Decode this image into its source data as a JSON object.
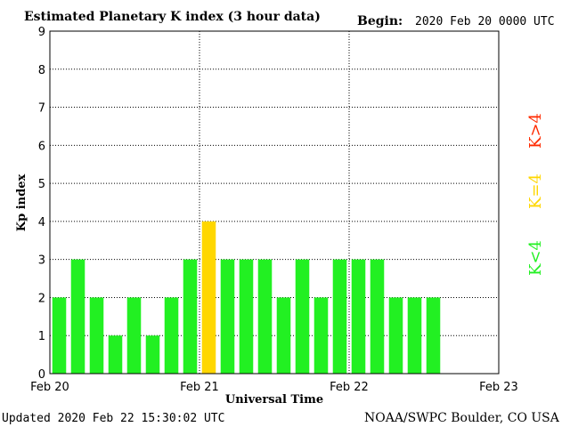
{
  "chart_data": {
    "type": "bar",
    "title": "Estimated Planetary K index (3 hour data)",
    "begin_label": "Begin:",
    "begin_value": "2020 Feb 20 0000 UTC",
    "ylabel": "Kp index",
    "xlabel": "Universal Time",
    "ylim": [
      0,
      9
    ],
    "yticks": [
      "0",
      "1",
      "2",
      "3",
      "4",
      "5",
      "6",
      "7",
      "8",
      "9"
    ],
    "xlim_hours": [
      0,
      72
    ],
    "xtick_labels": [
      "Feb 20",
      "Feb 21",
      "Feb 22",
      "Feb 23"
    ],
    "bar_width_hours": 3,
    "values": [
      2,
      3,
      2,
      1,
      2,
      1,
      2,
      3,
      4,
      3,
      3,
      3,
      2,
      3,
      2,
      3,
      3,
      3,
      2,
      2,
      2
    ],
    "thresholds": {
      "low_below": 4,
      "equal": 4
    },
    "colors": {
      "low": "#22f022",
      "equal": "#ffd700",
      "high": "#ff2a00"
    },
    "legend": [
      {
        "label": "K<4",
        "color": "#22f022"
      },
      {
        "label": "K=4",
        "color": "#ffd700"
      },
      {
        "label": "K>4",
        "color": "#ff2a00"
      }
    ],
    "grid": true
  },
  "footer": {
    "updated": "Updated 2020 Feb 22 15:30:02 UTC",
    "source": "NOAA/SWPC Boulder, CO USA"
  }
}
